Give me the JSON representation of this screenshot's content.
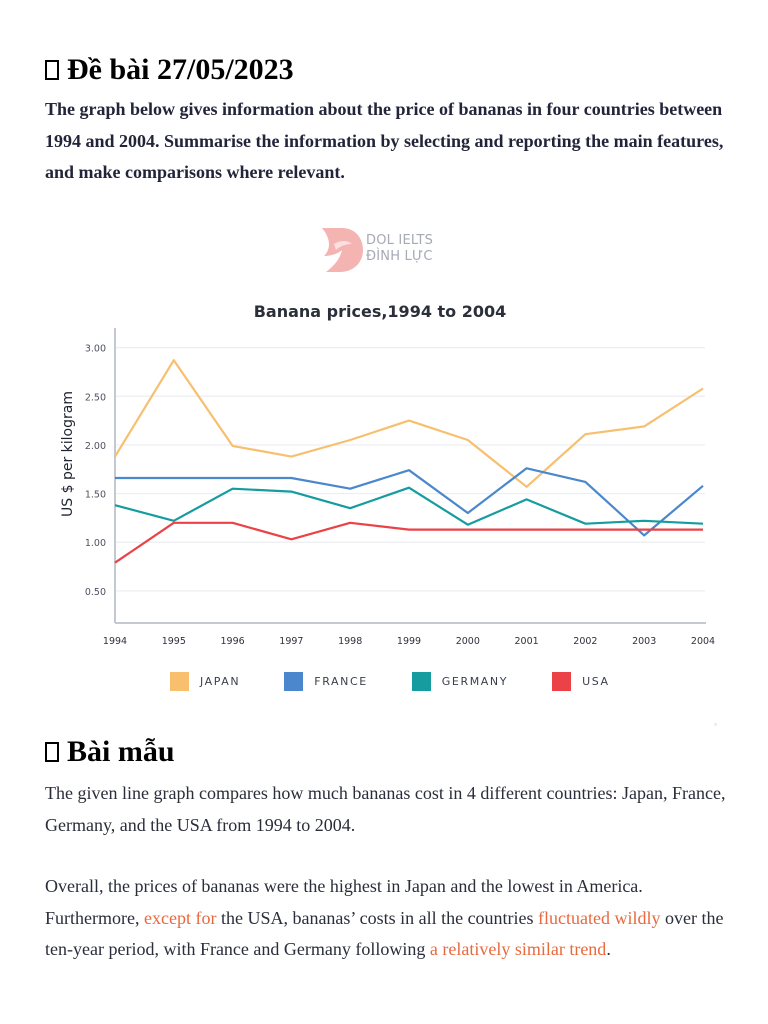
{
  "task": {
    "heading_icon": "missing-glyph-box",
    "heading": "Đề bài 27/05/2023",
    "prompt": "The graph below gives information about the price of bananas in four countries between 1994 and 2004. Summarise the information by selecting and reporting the main features, and make comparisons where relevant."
  },
  "logo": {
    "line1": "DOL IELTS",
    "line2": "ĐÌNH LỰC",
    "color": "#f0a3a3"
  },
  "chart_data": {
    "type": "line",
    "title": "Banana prices,1994 to 2004",
    "xlabel": "",
    "ylabel": "US $ per kilogram",
    "x": [
      "1994",
      "1995",
      "1996",
      "1997",
      "1998",
      "1999",
      "2000",
      "2001",
      "2002",
      "2003",
      "2004"
    ],
    "yticks": [
      "0.50",
      "1.00",
      "1.50",
      "2.00",
      "2.50",
      "3.00"
    ],
    "ylim": [
      0.17,
      3.15
    ],
    "grid": true,
    "legend_position": "bottom",
    "series": [
      {
        "name": "JAPAN",
        "color": "#f7bf6e",
        "values": [
          1.88,
          2.87,
          1.99,
          1.88,
          2.05,
          2.25,
          2.05,
          1.57,
          2.11,
          2.19,
          2.58
        ]
      },
      {
        "name": "FRANCE",
        "color": "#4a87cc",
        "values": [
          1.66,
          1.66,
          1.66,
          1.66,
          1.55,
          1.74,
          1.3,
          1.76,
          1.62,
          1.07,
          1.58
        ]
      },
      {
        "name": "GERMANY",
        "color": "#169c9f",
        "values": [
          1.38,
          1.22,
          1.55,
          1.52,
          1.35,
          1.56,
          1.18,
          1.44,
          1.19,
          1.22,
          1.19
        ]
      },
      {
        "name": "USA",
        "color": "#ea4246",
        "values": [
          0.79,
          1.2,
          1.2,
          1.03,
          1.2,
          1.13,
          1.13,
          1.13,
          1.13,
          1.13,
          1.13
        ]
      }
    ]
  },
  "sample": {
    "heading_icon": "missing-glyph-box",
    "heading": "Bài mẫu",
    "para1": "The given line graph compares how much bananas cost in 4 different countries: Japan, France, Germany, and the USA from 1994 to 2004.",
    "para2": [
      {
        "text": "Overall, the prices of bananas were the highest in Japan and the lowest in America. Furthermore, ",
        "highlight": false
      },
      {
        "text": "except for",
        "highlight": true
      },
      {
        "text": " the USA, bananas’ costs in all the countries ",
        "highlight": false
      },
      {
        "text": "fluctuated wildly",
        "highlight": true
      },
      {
        "text": " over the ten-year period, with France and Germany following ",
        "highlight": false
      },
      {
        "text": "a relatively similar trend",
        "highlight": true
      },
      {
        "text": ".",
        "highlight": false
      }
    ],
    "highlight_color": "#e8693d"
  }
}
